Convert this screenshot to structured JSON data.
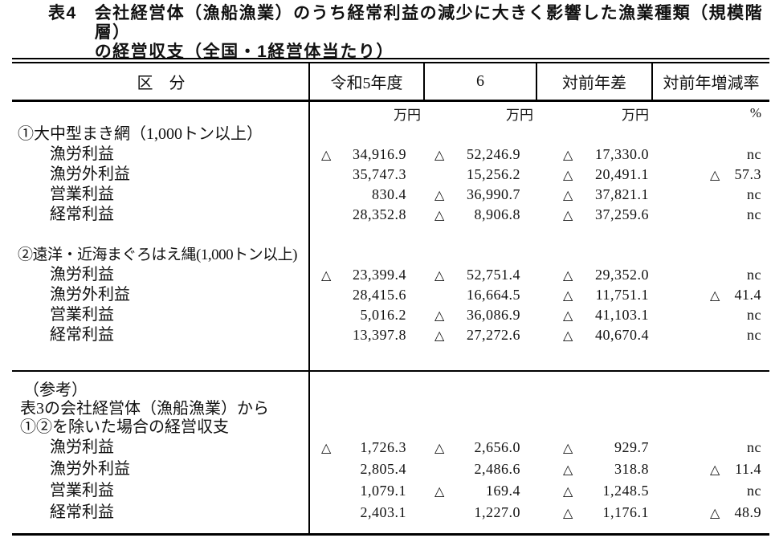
{
  "title": {
    "tag": "表4",
    "line1": "会社経営体（漁船漁業）のうち経常利益の減少に大きく影響した漁業種類（規模階層）",
    "line2": "の経営収支（全国・1経営体当たり）"
  },
  "table": {
    "columns": [
      "区　分",
      "令和5年度",
      "6",
      "対前年差",
      "対前年増減率"
    ],
    "units": [
      "万円",
      "万円",
      "万円",
      "%"
    ],
    "negative_marker": "△",
    "not_calculable": "nc",
    "sections": [
      {
        "id": "block1",
        "heading": "①大中型まき網（1,000トン以上）",
        "rows": [
          {
            "label": "漁労利益",
            "values": [
              {
                "neg": true,
                "v": "34,916.9"
              },
              {
                "neg": true,
                "v": "52,246.9"
              },
              {
                "neg": true,
                "v": "17,330.0"
              },
              {
                "neg": false,
                "v": "nc"
              }
            ]
          },
          {
            "label": "漁労外利益",
            "values": [
              {
                "neg": false,
                "v": "35,747.3"
              },
              {
                "neg": false,
                "v": "15,256.2"
              },
              {
                "neg": true,
                "v": "20,491.1"
              },
              {
                "neg": true,
                "v": "57.3"
              }
            ]
          },
          {
            "label": "営業利益",
            "values": [
              {
                "neg": false,
                "v": "830.4"
              },
              {
                "neg": true,
                "v": "36,990.7"
              },
              {
                "neg": true,
                "v": "37,821.1"
              },
              {
                "neg": false,
                "v": "nc"
              }
            ]
          },
          {
            "label": "経常利益",
            "values": [
              {
                "neg": false,
                "v": "28,352.8"
              },
              {
                "neg": true,
                "v": "8,906.8"
              },
              {
                "neg": true,
                "v": "37,259.6"
              },
              {
                "neg": false,
                "v": "nc"
              }
            ]
          }
        ]
      },
      {
        "id": "block2",
        "heading": "②遠洋・近海まぐろはえ縄(1,000トン以上)",
        "rows": [
          {
            "label": "漁労利益",
            "values": [
              {
                "neg": true,
                "v": "23,399.4"
              },
              {
                "neg": true,
                "v": "52,751.4"
              },
              {
                "neg": true,
                "v": "29,352.0"
              },
              {
                "neg": false,
                "v": "nc"
              }
            ]
          },
          {
            "label": "漁労外利益",
            "values": [
              {
                "neg": false,
                "v": "28,415.6"
              },
              {
                "neg": false,
                "v": "16,664.5"
              },
              {
                "neg": true,
                "v": "11,751.1"
              },
              {
                "neg": true,
                "v": "41.4"
              }
            ]
          },
          {
            "label": "営業利益",
            "values": [
              {
                "neg": false,
                "v": "5,016.2"
              },
              {
                "neg": true,
                "v": "36,086.9"
              },
              {
                "neg": true,
                "v": "41,103.1"
              },
              {
                "neg": false,
                "v": "nc"
              }
            ]
          },
          {
            "label": "経常利益",
            "values": [
              {
                "neg": false,
                "v": "13,397.8"
              },
              {
                "neg": true,
                "v": "27,272.6"
              },
              {
                "neg": true,
                "v": "40,670.4"
              },
              {
                "neg": false,
                "v": "nc"
              }
            ]
          }
        ]
      },
      {
        "id": "reference",
        "heading_lines": [
          "（参考）",
          "表3の会社経営体（漁船漁業）から",
          "①②を除いた場合の経営収支"
        ],
        "rows": [
          {
            "label": "漁労利益",
            "values": [
              {
                "neg": true,
                "v": "1,726.3"
              },
              {
                "neg": true,
                "v": "2,656.0"
              },
              {
                "neg": true,
                "v": "929.7"
              },
              {
                "neg": false,
                "v": "nc"
              }
            ]
          },
          {
            "label": "漁労外利益",
            "values": [
              {
                "neg": false,
                "v": "2,805.4"
              },
              {
                "neg": false,
                "v": "2,486.6"
              },
              {
                "neg": true,
                "v": "318.8"
              },
              {
                "neg": true,
                "v": "11.4"
              }
            ]
          },
          {
            "label": "営業利益",
            "values": [
              {
                "neg": false,
                "v": "1,079.1"
              },
              {
                "neg": true,
                "v": "169.4"
              },
              {
                "neg": true,
                "v": "1,248.5"
              },
              {
                "neg": false,
                "v": "nc"
              }
            ]
          },
          {
            "label": "経常利益",
            "values": [
              {
                "neg": false,
                "v": "2,403.1"
              },
              {
                "neg": false,
                "v": "1,227.0"
              },
              {
                "neg": true,
                "v": "1,176.1"
              },
              {
                "neg": true,
                "v": "48.9"
              }
            ]
          }
        ]
      }
    ]
  }
}
